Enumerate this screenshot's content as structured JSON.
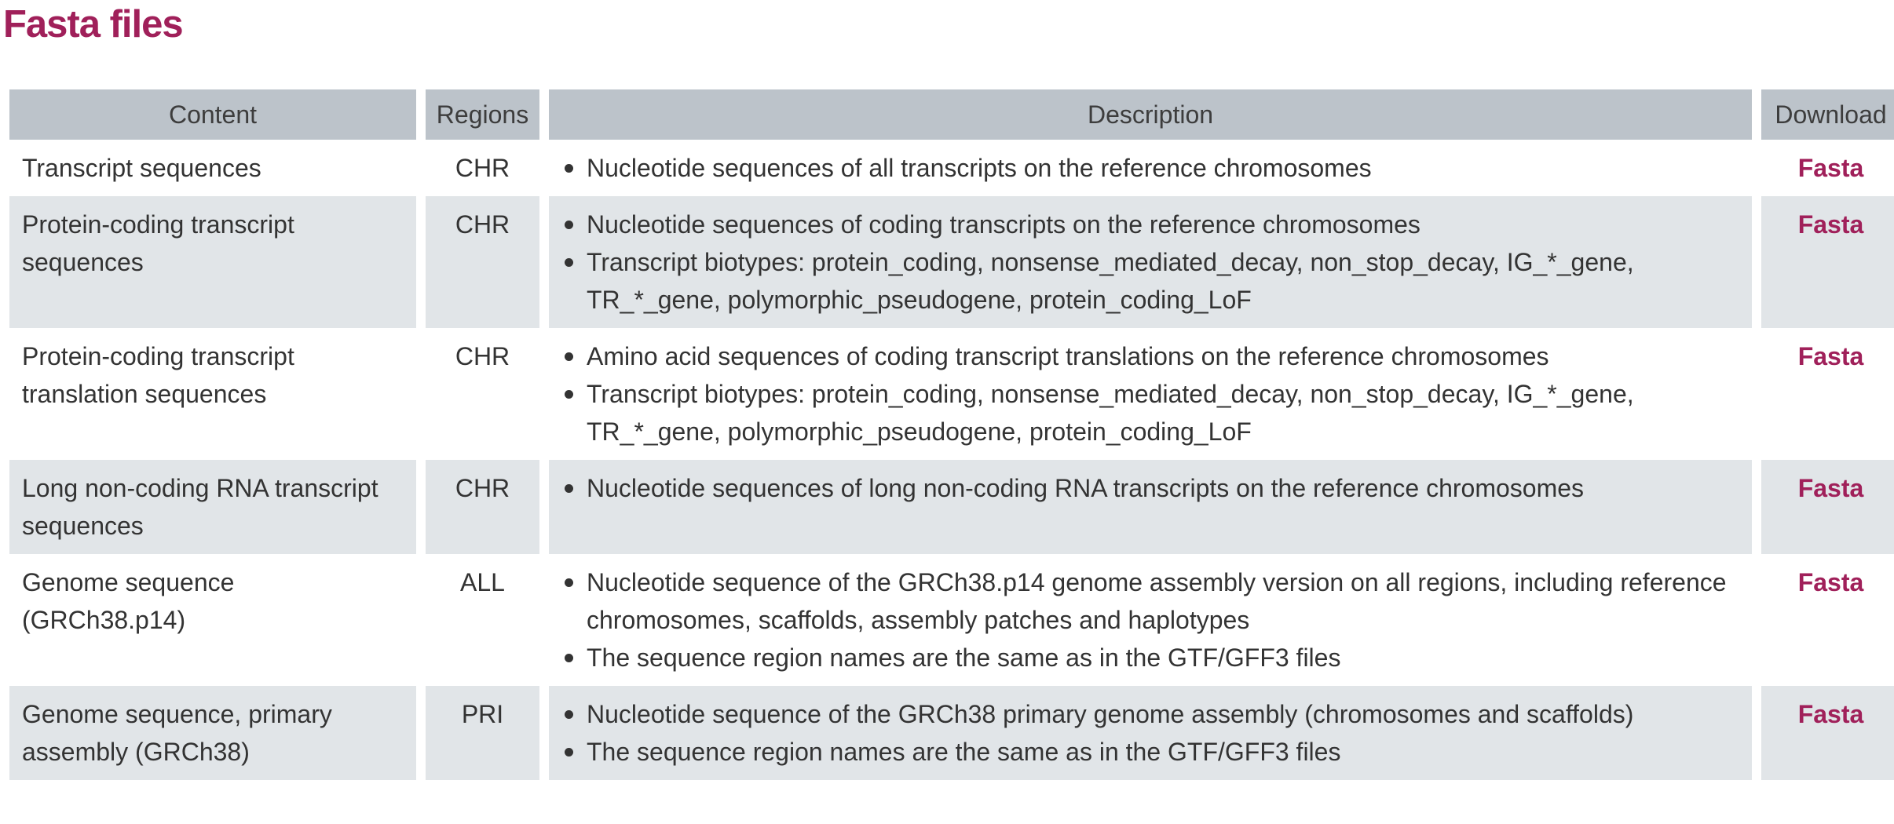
{
  "page": {
    "title": "Fasta files"
  },
  "table": {
    "headers": {
      "content": "Content",
      "regions": "Regions",
      "description": "Description",
      "download": "Download"
    },
    "rows": [
      {
        "content": "Transcript sequences",
        "regions": "CHR",
        "description": [
          "Nucleotide sequences of all transcripts on the reference chromosomes"
        ],
        "download": "Fasta"
      },
      {
        "content": "Protein-coding transcript sequences",
        "regions": "CHR",
        "description": [
          "Nucleotide sequences of coding transcripts on the reference chromosomes",
          "Transcript biotypes: protein_coding, nonsense_mediated_decay, non_stop_decay, IG_*_gene, TR_*_gene, polymorphic_pseudogene, protein_coding_LoF"
        ],
        "download": "Fasta"
      },
      {
        "content": "Protein-coding transcript translation sequences",
        "regions": "CHR",
        "description": [
          "Amino acid sequences of coding transcript translations on the reference chromosomes",
          "Transcript biotypes: protein_coding, nonsense_mediated_decay, non_stop_decay, IG_*_gene, TR_*_gene, polymorphic_pseudogene, protein_coding_LoF"
        ],
        "download": "Fasta"
      },
      {
        "content": "Long non-coding RNA transcript sequences",
        "regions": "CHR",
        "description": [
          "Nucleotide sequences of long non-coding RNA transcripts on the reference chromosomes"
        ],
        "download": "Fasta"
      },
      {
        "content": "Genome sequence (GRCh38.p14)",
        "regions": "ALL",
        "description": [
          "Nucleotide sequence of the GRCh38.p14 genome assembly version on all regions, including reference chromosomes, scaffolds, assembly patches and haplotypes",
          "The sequence region names are the same as in the GTF/GFF3 files"
        ],
        "download": "Fasta"
      },
      {
        "content": "Genome sequence, primary assembly (GRCh38)",
        "regions": "PRI",
        "description": [
          "Nucleotide sequence of the GRCh38 primary genome assembly (chromosomes and scaffolds)",
          "The sequence region names are the same as in the GTF/GFF3 files"
        ],
        "download": "Fasta"
      }
    ]
  },
  "colors": {
    "title": "#a0205a",
    "link": "#a0205a",
    "header_bg": "#bcc3ca",
    "row_shade": "#e1e5e8"
  }
}
